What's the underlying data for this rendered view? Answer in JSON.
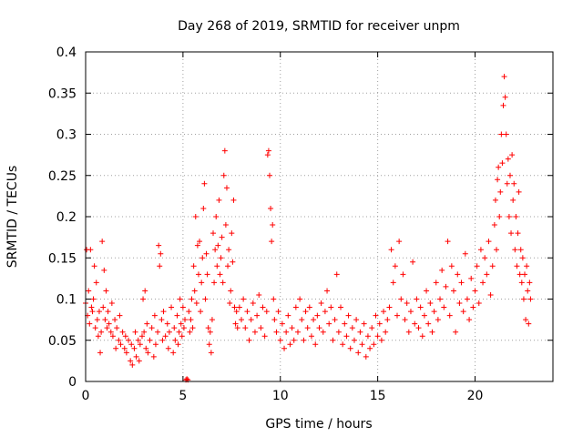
{
  "chart_data": {
    "type": "scatter",
    "title": "Day 268 of 2019, SRMTID for receiver unpm",
    "xlabel": "GPS time / hours",
    "ylabel": "SRMTID / TECUs",
    "xlim": [
      0,
      24
    ],
    "ylim": [
      0,
      0.4
    ],
    "xticks": [
      0,
      5,
      10,
      15,
      20
    ],
    "yticks": [
      0,
      0.05,
      0.1,
      0.15,
      0.2,
      0.25,
      0.3,
      0.35,
      0.4
    ],
    "xtick_labels": [
      "0",
      "5",
      "10",
      "15",
      "20"
    ],
    "ytick_labels": [
      "0",
      "0.05",
      "0.1",
      "0.15",
      "0.2",
      "0.25",
      "0.3",
      "0.35",
      "0.4"
    ],
    "grid": true,
    "marker": "+",
    "color": "#ff0000",
    "series": [
      {
        "name": "SRMTID",
        "points": [
          [
            0.0,
            0.095
          ],
          [
            0.05,
            0.16
          ],
          [
            0.1,
            0.08
          ],
          [
            0.15,
            0.11
          ],
          [
            0.2,
            0.07
          ],
          [
            0.25,
            0.16
          ],
          [
            0.3,
            0.09
          ],
          [
            0.35,
            0.085
          ],
          [
            0.4,
            0.1
          ],
          [
            0.45,
            0.14
          ],
          [
            0.5,
            0.065
          ],
          [
            0.55,
            0.12
          ],
          [
            0.6,
            0.075
          ],
          [
            0.65,
            0.055
          ],
          [
            0.7,
            0.085
          ],
          [
            0.75,
            0.035
          ],
          [
            0.8,
            0.06
          ],
          [
            0.85,
            0.17
          ],
          [
            0.9,
            0.09
          ],
          [
            0.95,
            0.135
          ],
          [
            1.0,
            0.075
          ],
          [
            1.05,
            0.11
          ],
          [
            1.1,
            0.065
          ],
          [
            1.15,
            0.085
          ],
          [
            1.2,
            0.07
          ],
          [
            1.3,
            0.06
          ],
          [
            1.35,
            0.095
          ],
          [
            1.4,
            0.055
          ],
          [
            1.5,
            0.075
          ],
          [
            1.55,
            0.04
          ],
          [
            1.6,
            0.065
          ],
          [
            1.7,
            0.05
          ],
          [
            1.75,
            0.08
          ],
          [
            1.8,
            0.045
          ],
          [
            1.9,
            0.06
          ],
          [
            2.0,
            0.04
          ],
          [
            2.05,
            0.055
          ],
          [
            2.1,
            0.035
          ],
          [
            2.2,
            0.05
          ],
          [
            2.3,
            0.025
          ],
          [
            2.35,
            0.045
          ],
          [
            2.4,
            0.02
          ],
          [
            2.5,
            0.04
          ],
          [
            2.55,
            0.06
          ],
          [
            2.6,
            0.03
          ],
          [
            2.7,
            0.05
          ],
          [
            2.75,
            0.025
          ],
          [
            2.8,
            0.045
          ],
          [
            2.9,
            0.055
          ],
          [
            2.95,
            0.1
          ],
          [
            3.0,
            0.06
          ],
          [
            3.05,
            0.11
          ],
          [
            3.1,
            0.04
          ],
          [
            3.15,
            0.07
          ],
          [
            3.2,
            0.035
          ],
          [
            3.3,
            0.05
          ],
          [
            3.4,
            0.065
          ],
          [
            3.5,
            0.03
          ],
          [
            3.55,
            0.08
          ],
          [
            3.6,
            0.045
          ],
          [
            3.7,
            0.06
          ],
          [
            3.75,
            0.165
          ],
          [
            3.8,
            0.14
          ],
          [
            3.85,
            0.155
          ],
          [
            3.9,
            0.075
          ],
          [
            3.95,
            0.05
          ],
          [
            4.0,
            0.085
          ],
          [
            4.1,
            0.055
          ],
          [
            4.2,
            0.07
          ],
          [
            4.25,
            0.04
          ],
          [
            4.3,
            0.06
          ],
          [
            4.4,
            0.09
          ],
          [
            4.5,
            0.035
          ],
          [
            4.55,
            0.065
          ],
          [
            4.6,
            0.05
          ],
          [
            4.7,
            0.08
          ],
          [
            4.75,
            0.045
          ],
          [
            4.8,
            0.06
          ],
          [
            4.85,
            0.1
          ],
          [
            4.9,
            0.07
          ],
          [
            4.95,
            0.055
          ],
          [
            5.0,
            0.09
          ],
          [
            5.05,
            0.065
          ],
          [
            5.1,
            0.075
          ],
          [
            5.15,
            0.002
          ],
          [
            5.2,
            0.003
          ],
          [
            5.25,
            0.002
          ],
          [
            5.3,
            0.085
          ],
          [
            5.35,
            0.06
          ],
          [
            5.4,
            0.075
          ],
          [
            5.45,
            0.1
          ],
          [
            5.5,
            0.065
          ],
          [
            5.55,
            0.14
          ],
          [
            5.6,
            0.11
          ],
          [
            5.65,
            0.2
          ],
          [
            5.7,
            0.095
          ],
          [
            5.75,
            0.165
          ],
          [
            5.8,
            0.13
          ],
          [
            5.85,
            0.17
          ],
          [
            5.9,
            0.085
          ],
          [
            5.95,
            0.12
          ],
          [
            6.0,
            0.15
          ],
          [
            6.05,
            0.21
          ],
          [
            6.1,
            0.24
          ],
          [
            6.15,
            0.1
          ],
          [
            6.2,
            0.155
          ],
          [
            6.25,
            0.13
          ],
          [
            6.3,
            0.065
          ],
          [
            6.35,
            0.045
          ],
          [
            6.4,
            0.06
          ],
          [
            6.45,
            0.035
          ],
          [
            6.5,
            0.075
          ],
          [
            6.55,
            0.18
          ],
          [
            6.6,
            0.12
          ],
          [
            6.65,
            0.16
          ],
          [
            6.7,
            0.2
          ],
          [
            6.75,
            0.14
          ],
          [
            6.8,
            0.165
          ],
          [
            6.85,
            0.22
          ],
          [
            6.9,
            0.13
          ],
          [
            6.95,
            0.15
          ],
          [
            7.0,
            0.175
          ],
          [
            7.05,
            0.12
          ],
          [
            7.1,
            0.25
          ],
          [
            7.15,
            0.28
          ],
          [
            7.2,
            0.19
          ],
          [
            7.25,
            0.235
          ],
          [
            7.3,
            0.14
          ],
          [
            7.35,
            0.16
          ],
          [
            7.4,
            0.095
          ],
          [
            7.45,
            0.11
          ],
          [
            7.5,
            0.18
          ],
          [
            7.55,
            0.145
          ],
          [
            7.6,
            0.22
          ],
          [
            7.65,
            0.09
          ],
          [
            7.7,
            0.07
          ],
          [
            7.75,
            0.085
          ],
          [
            7.8,
            0.065
          ],
          [
            7.9,
            0.09
          ],
          [
            8.0,
            0.075
          ],
          [
            8.1,
            0.1
          ],
          [
            8.2,
            0.065
          ],
          [
            8.3,
            0.085
          ],
          [
            8.4,
            0.05
          ],
          [
            8.5,
            0.075
          ],
          [
            8.6,
            0.095
          ],
          [
            8.7,
            0.06
          ],
          [
            8.8,
            0.08
          ],
          [
            8.9,
            0.105
          ],
          [
            9.0,
            0.065
          ],
          [
            9.1,
            0.09
          ],
          [
            9.2,
            0.055
          ],
          [
            9.3,
            0.085
          ],
          [
            9.35,
            0.275
          ],
          [
            9.4,
            0.28
          ],
          [
            9.45,
            0.25
          ],
          [
            9.5,
            0.21
          ],
          [
            9.55,
            0.17
          ],
          [
            9.6,
            0.19
          ],
          [
            9.65,
            0.1
          ],
          [
            9.7,
            0.075
          ],
          [
            9.8,
            0.06
          ],
          [
            9.9,
            0.085
          ],
          [
            10.0,
            0.05
          ],
          [
            10.1,
            0.07
          ],
          [
            10.2,
            0.04
          ],
          [
            10.3,
            0.06
          ],
          [
            10.4,
            0.08
          ],
          [
            10.5,
            0.045
          ],
          [
            10.6,
            0.065
          ],
          [
            10.7,
            0.05
          ],
          [
            10.8,
            0.09
          ],
          [
            10.9,
            0.06
          ],
          [
            11.0,
            0.1
          ],
          [
            11.1,
            0.075
          ],
          [
            11.2,
            0.05
          ],
          [
            11.3,
            0.085
          ],
          [
            11.4,
            0.065
          ],
          [
            11.5,
            0.09
          ],
          [
            11.6,
            0.055
          ],
          [
            11.7,
            0.075
          ],
          [
            11.8,
            0.045
          ],
          [
            11.9,
            0.08
          ],
          [
            12.0,
            0.065
          ],
          [
            12.1,
            0.095
          ],
          [
            12.2,
            0.06
          ],
          [
            12.3,
            0.085
          ],
          [
            12.4,
            0.11
          ],
          [
            12.5,
            0.07
          ],
          [
            12.6,
            0.09
          ],
          [
            12.7,
            0.05
          ],
          [
            12.8,
            0.075
          ],
          [
            12.9,
            0.13
          ],
          [
            13.0,
            0.06
          ],
          [
            13.1,
            0.09
          ],
          [
            13.2,
            0.045
          ],
          [
            13.3,
            0.07
          ],
          [
            13.4,
            0.055
          ],
          [
            13.5,
            0.08
          ],
          [
            13.6,
            0.04
          ],
          [
            13.7,
            0.065
          ],
          [
            13.8,
            0.05
          ],
          [
            13.9,
            0.075
          ],
          [
            14.0,
            0.035
          ],
          [
            14.1,
            0.06
          ],
          [
            14.2,
            0.045
          ],
          [
            14.3,
            0.07
          ],
          [
            14.4,
            0.03
          ],
          [
            14.5,
            0.055
          ],
          [
            14.6,
            0.04
          ],
          [
            14.7,
            0.065
          ],
          [
            14.8,
            0.045
          ],
          [
            14.9,
            0.08
          ],
          [
            15.0,
            0.055
          ],
          [
            15.1,
            0.07
          ],
          [
            15.2,
            0.05
          ],
          [
            15.3,
            0.085
          ],
          [
            15.4,
            0.06
          ],
          [
            15.5,
            0.075
          ],
          [
            15.6,
            0.09
          ],
          [
            15.7,
            0.16
          ],
          [
            15.8,
            0.12
          ],
          [
            15.9,
            0.14
          ],
          [
            16.0,
            0.08
          ],
          [
            16.1,
            0.17
          ],
          [
            16.2,
            0.1
          ],
          [
            16.3,
            0.13
          ],
          [
            16.4,
            0.075
          ],
          [
            16.5,
            0.095
          ],
          [
            16.6,
            0.06
          ],
          [
            16.7,
            0.085
          ],
          [
            16.8,
            0.145
          ],
          [
            16.9,
            0.07
          ],
          [
            17.0,
            0.1
          ],
          [
            17.1,
            0.065
          ],
          [
            17.2,
            0.09
          ],
          [
            17.3,
            0.055
          ],
          [
            17.4,
            0.08
          ],
          [
            17.5,
            0.11
          ],
          [
            17.6,
            0.07
          ],
          [
            17.7,
            0.095
          ],
          [
            17.8,
            0.06
          ],
          [
            17.9,
            0.085
          ],
          [
            18.0,
            0.12
          ],
          [
            18.1,
            0.075
          ],
          [
            18.2,
            0.1
          ],
          [
            18.3,
            0.135
          ],
          [
            18.4,
            0.09
          ],
          [
            18.5,
            0.115
          ],
          [
            18.6,
            0.17
          ],
          [
            18.7,
            0.08
          ],
          [
            18.8,
            0.14
          ],
          [
            18.9,
            0.11
          ],
          [
            19.0,
            0.06
          ],
          [
            19.1,
            0.13
          ],
          [
            19.2,
            0.095
          ],
          [
            19.3,
            0.12
          ],
          [
            19.4,
            0.085
          ],
          [
            19.5,
            0.155
          ],
          [
            19.6,
            0.1
          ],
          [
            19.7,
            0.075
          ],
          [
            19.8,
            0.125
          ],
          [
            19.9,
            0.09
          ],
          [
            20.0,
            0.11
          ],
          [
            20.1,
            0.14
          ],
          [
            20.2,
            0.095
          ],
          [
            20.3,
            0.16
          ],
          [
            20.4,
            0.12
          ],
          [
            20.5,
            0.15
          ],
          [
            20.6,
            0.13
          ],
          [
            20.7,
            0.17
          ],
          [
            20.8,
            0.105
          ],
          [
            20.9,
            0.14
          ],
          [
            21.0,
            0.19
          ],
          [
            21.05,
            0.22
          ],
          [
            21.1,
            0.16
          ],
          [
            21.15,
            0.245
          ],
          [
            21.2,
            0.26
          ],
          [
            21.25,
            0.2
          ],
          [
            21.3,
            0.23
          ],
          [
            21.35,
            0.3
          ],
          [
            21.4,
            0.265
          ],
          [
            21.45,
            0.335
          ],
          [
            21.5,
            0.37
          ],
          [
            21.55,
            0.345
          ],
          [
            21.6,
            0.3
          ],
          [
            21.65,
            0.24
          ],
          [
            21.7,
            0.27
          ],
          [
            21.75,
            0.2
          ],
          [
            21.8,
            0.25
          ],
          [
            21.85,
            0.18
          ],
          [
            21.9,
            0.275
          ],
          [
            21.95,
            0.22
          ],
          [
            22.0,
            0.24
          ],
          [
            22.05,
            0.16
          ],
          [
            22.1,
            0.2
          ],
          [
            22.15,
            0.14
          ],
          [
            22.2,
            0.18
          ],
          [
            22.25,
            0.23
          ],
          [
            22.3,
            0.13
          ],
          [
            22.35,
            0.16
          ],
          [
            22.4,
            0.12
          ],
          [
            22.45,
            0.15
          ],
          [
            22.5,
            0.1
          ],
          [
            22.55,
            0.13
          ],
          [
            22.6,
            0.075
          ],
          [
            22.65,
            0.14
          ],
          [
            22.7,
            0.11
          ],
          [
            22.75,
            0.07
          ],
          [
            22.8,
            0.12
          ],
          [
            22.85,
            0.1
          ]
        ]
      }
    ]
  }
}
